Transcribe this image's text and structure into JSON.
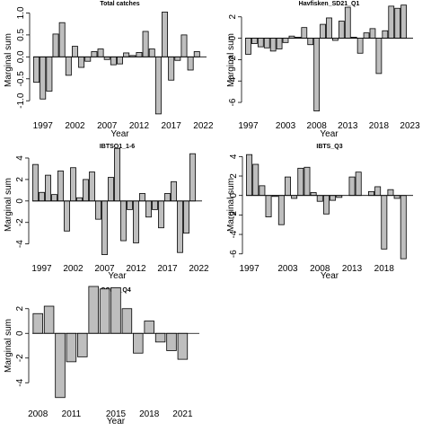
{
  "chart_data": [
    {
      "type": "bar",
      "title": "Total catches",
      "xlabel": "Year",
      "ylabel": "Marginal sum",
      "ylim": [
        -1.2,
        1.05
      ],
      "yticks": [
        "-1.0",
        "-0.5",
        "0.0",
        "0.5",
        "1.0"
      ],
      "ytick_values": [
        -1.0,
        -0.5,
        0.0,
        0.5,
        1.0
      ],
      "x": [
        1996,
        1997,
        1998,
        1999,
        2000,
        2001,
        2002,
        2003,
        2004,
        2005,
        2006,
        2007,
        2008,
        2009,
        2010,
        2011,
        2012,
        2013,
        2014,
        2015,
        2016,
        2017,
        2018,
        2019,
        2020,
        2021,
        2022
      ],
      "values": [
        -0.58,
        -0.96,
        -0.78,
        0.52,
        0.78,
        -0.42,
        0.24,
        -0.24,
        -0.1,
        0.12,
        0.18,
        -0.06,
        -0.18,
        -0.16,
        0.09,
        0.03,
        0.1,
        0.58,
        0.18,
        -1.3,
        1.02,
        -0.53,
        -0.08,
        0.5,
        -0.3,
        0.12,
        0.0
      ],
      "xtick_labels": [
        "1997",
        "2002",
        "2007",
        "2012",
        "2017",
        "2022"
      ],
      "xtick_values": [
        1997,
        2002,
        2007,
        2012,
        2017,
        2022
      ]
    },
    {
      "type": "bar",
      "title": "Havfisken_SD21_Q1",
      "xlabel": "Year",
      "ylabel": "Marginal sum",
      "ylim": [
        -6.5,
        2.4
      ],
      "yticks": [
        "-6",
        "-4",
        "-2",
        "0",
        "2"
      ],
      "ytick_values": [
        -6,
        -4,
        -2,
        0,
        2
      ],
      "x": [
        1997,
        1998,
        1999,
        2000,
        2001,
        2002,
        2003,
        2004,
        2005,
        2006,
        2007,
        2008,
        2009,
        2010,
        2011,
        2012,
        2013,
        2014,
        2015,
        2016,
        2017,
        2018,
        2019,
        2020,
        2021,
        2022,
        2023
      ],
      "values": [
        -1.5,
        -0.5,
        -0.8,
        -0.9,
        -1.2,
        -1.0,
        -0.4,
        0.2,
        0.1,
        1.0,
        -0.6,
        -6.8,
        1.3,
        1.9,
        -0.2,
        1.6,
        2.9,
        0.1,
        -1.4,
        0.5,
        0.9,
        -3.3,
        0.7,
        3.0,
        2.8,
        3.1,
        0.0
      ],
      "xtick_labels": [
        "1997",
        "2003",
        "2008",
        "2013",
        "2018",
        "2023"
      ],
      "xtick_values": [
        1997,
        2003,
        2008,
        2013,
        2018,
        2023
      ]
    },
    {
      "type": "bar",
      "title": "IBTSQ1_1-6",
      "xlabel": "Year",
      "ylabel": "Marginal sum",
      "ylim": [
        -5.2,
        4.5
      ],
      "yticks": [
        "-4",
        "-2",
        "0",
        "2",
        "4"
      ],
      "ytick_values": [
        -4,
        -2,
        0,
        2,
        4
      ],
      "x": [
        1996,
        1997,
        1998,
        1999,
        2000,
        2001,
        2002,
        2003,
        2004,
        2005,
        2006,
        2007,
        2008,
        2009,
        2010,
        2011,
        2012,
        2013,
        2014,
        2015,
        2016,
        2017,
        2018,
        2019,
        2020,
        2021,
        2022
      ],
      "values": [
        3.4,
        0.8,
        2.4,
        0.6,
        2.8,
        -2.8,
        3.1,
        0.3,
        2.0,
        2.7,
        -1.7,
        -5.0,
        2.2,
        4.9,
        -3.7,
        -0.8,
        -3.9,
        0.7,
        -1.5,
        -0.8,
        -2.5,
        0.7,
        1.8,
        -4.8,
        -3.0,
        4.4,
        0.0
      ],
      "xtick_labels": [
        "1997",
        "2002",
        "2007",
        "2012",
        "2017",
        "2022"
      ],
      "xtick_values": [
        1997,
        2002,
        2007,
        2012,
        2017,
        2022
      ]
    },
    {
      "type": "bar",
      "title": "IBTS_Q3",
      "xlabel": "Year",
      "ylabel": "Marginal sum",
      "ylim": [
        -6.3,
        4.4
      ],
      "yticks": [
        "-6",
        "-4",
        "-2",
        "0",
        "2",
        "4"
      ],
      "ytick_values": [
        -6,
        -4,
        -2,
        0,
        2,
        4
      ],
      "x": [
        1997,
        1998,
        1999,
        2000,
        2001,
        2002,
        2003,
        2004,
        2005,
        2006,
        2007,
        2008,
        2009,
        2010,
        2011,
        2012,
        2013,
        2014,
        2015,
        2016,
        2017,
        2018,
        2019,
        2020,
        2021,
        2022
      ],
      "values": [
        4.2,
        3.2,
        1.0,
        -2.2,
        -0.1,
        -3.0,
        1.9,
        -0.3,
        2.8,
        2.9,
        0.3,
        -0.6,
        -1.9,
        -0.5,
        -0.2,
        0.0,
        1.9,
        2.4,
        0.0,
        0.4,
        0.9,
        -5.5,
        0.6,
        -0.3,
        -6.5,
        0.0
      ],
      "xtick_labels": [
        "1997",
        "2003",
        "2008",
        "2013",
        "2018"
      ],
      "xtick_values": [
        1997,
        2003,
        2008,
        2013,
        2018
      ]
    },
    {
      "type": "bar",
      "title": "CODS_Q4",
      "xlabel": "Year",
      "ylabel": "Marginal sum",
      "ylim": [
        -5.0,
        3.0
      ],
      "yticks": [
        "-4",
        "-2",
        "0",
        "2"
      ],
      "ytick_values": [
        -4,
        -2,
        0,
        2
      ],
      "x": [
        2008,
        2009,
        2010,
        2011,
        2012,
        2013,
        2014,
        2015,
        2016,
        2017,
        2018,
        2019,
        2020,
        2021,
        2022
      ],
      "values": [
        1.6,
        2.2,
        -5.2,
        -2.3,
        -1.9,
        3.8,
        3.6,
        3.7,
        2.0,
        -1.6,
        1.0,
        -0.7,
        -1.4,
        -2.1,
        0.0
      ],
      "xtick_labels": [
        "2008",
        "2011",
        "2015",
        "2018",
        "2021"
      ],
      "xtick_values": [
        2008,
        2011,
        2015,
        2018,
        2021
      ]
    }
  ]
}
